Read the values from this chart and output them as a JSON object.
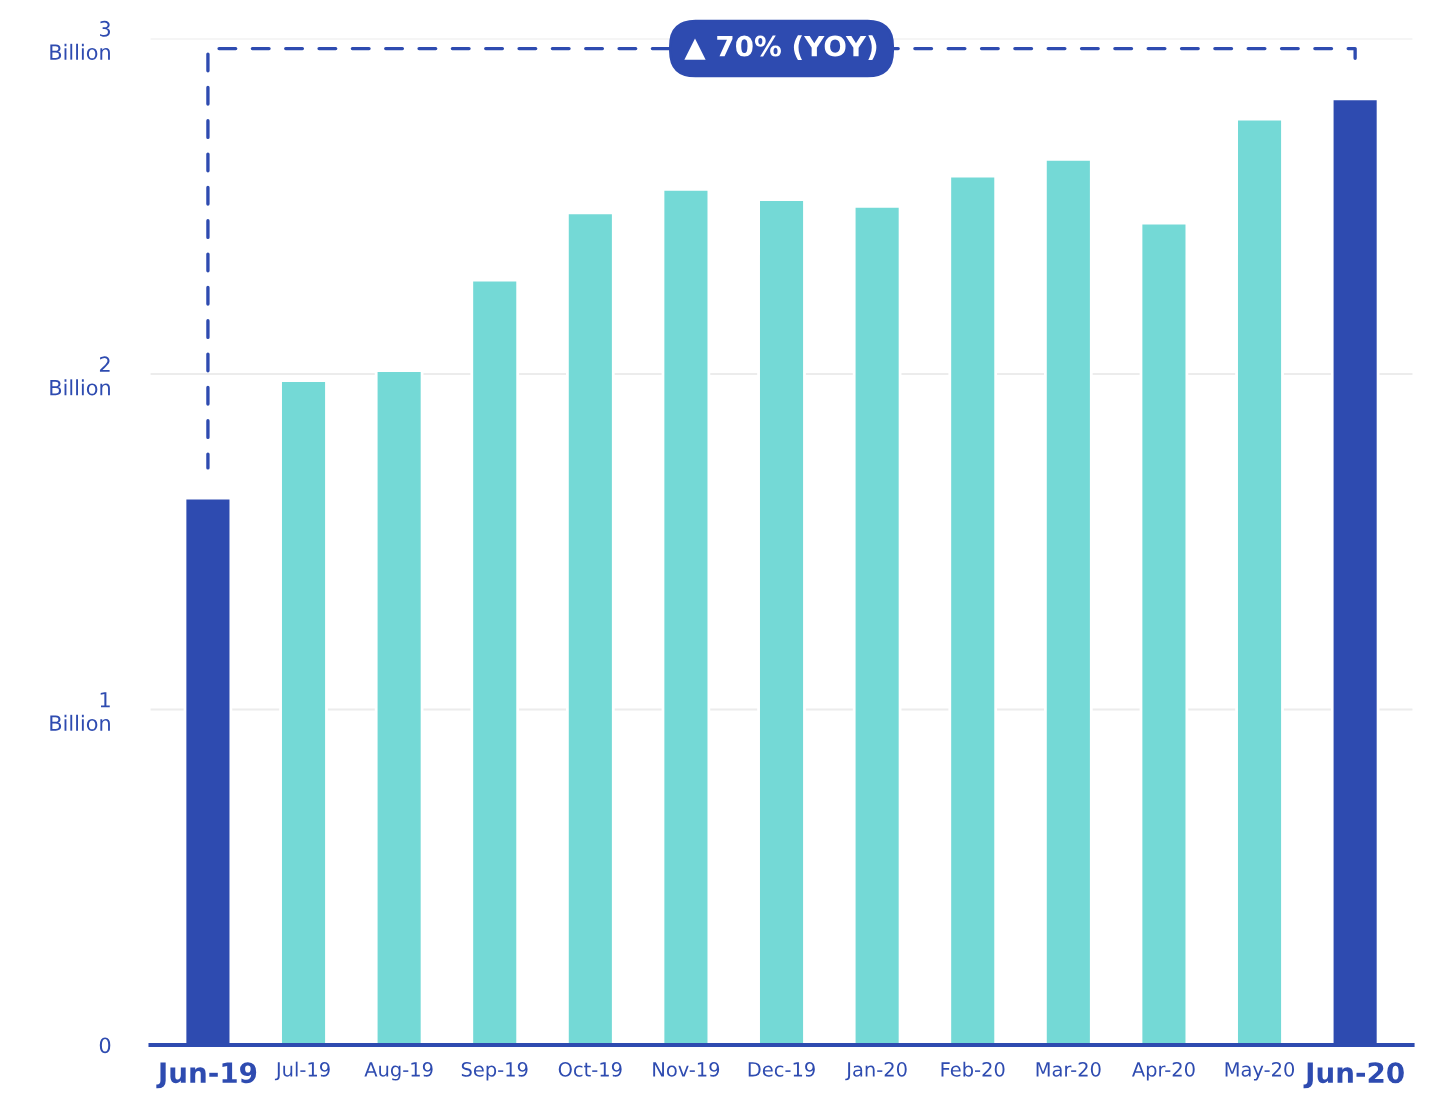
{
  "chart_data": {
    "type": "bar",
    "categories": [
      "Jun-19",
      "Jul-19",
      "Aug-19",
      "Sep-19",
      "Oct-19",
      "Nov-19",
      "Dec-19",
      "Jan-20",
      "Feb-20",
      "Mar-20",
      "Apr-20",
      "May-20",
      "Jun-20"
    ],
    "values": [
      1.63,
      1.98,
      2.01,
      2.28,
      2.48,
      2.55,
      2.52,
      2.5,
      2.59,
      2.64,
      2.45,
      2.76,
      2.82
    ],
    "colors": [
      "#2e4bb0",
      "#74d9d6",
      "#74d9d6",
      "#74d9d6",
      "#74d9d6",
      "#74d9d6",
      "#74d9d6",
      "#74d9d6",
      "#74d9d6",
      "#74d9d6",
      "#74d9d6",
      "#74d9d6",
      "#2e4bb0"
    ],
    "ylim": [
      0,
      3
    ],
    "yticks": [
      {
        "value": 0,
        "label": "0"
      },
      {
        "value": 1,
        "label": "1\nBillion"
      },
      {
        "value": 2,
        "label": "2\nBillion"
      },
      {
        "value": 3,
        "label": "3\nBillion"
      }
    ],
    "grid": "y",
    "annotations": [
      "▲ 70% (YOY)"
    ]
  }
}
